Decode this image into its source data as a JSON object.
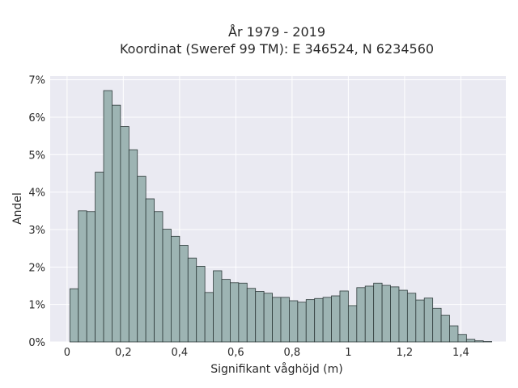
{
  "chart_data": {
    "type": "bar",
    "title": "År 1979 - 2019",
    "subtitle": "Koordinat (Sweref 99 TM): E 346524, N 6234560",
    "xlabel": "Signifikant våghöjd (m)",
    "ylabel": "Andel",
    "x_ticks": [
      0,
      0.2,
      0.4,
      0.6,
      0.8,
      1.0,
      1.2,
      1.4
    ],
    "x_tick_labels": [
      "0",
      "0,2",
      "0,4",
      "0,6",
      "0,8",
      "1",
      "1,2",
      "1,4"
    ],
    "y_ticks": [
      0,
      1,
      2,
      3,
      4,
      5,
      6,
      7
    ],
    "y_tick_labels": [
      "0%",
      "1%",
      "2%",
      "3%",
      "4%",
      "5%",
      "6%",
      "7%"
    ],
    "xlim": [
      -0.06,
      1.56
    ],
    "ylim": [
      0,
      7.1
    ],
    "grid": true,
    "bin_width": 0.03,
    "bin_start": 0.01,
    "values": [
      1.42,
      3.5,
      3.48,
      4.53,
      6.71,
      6.32,
      5.75,
      5.13,
      4.42,
      3.82,
      3.48,
      3.01,
      2.82,
      2.58,
      2.24,
      2.02,
      1.32,
      1.9,
      1.67,
      1.58,
      1.57,
      1.43,
      1.35,
      1.3,
      1.19,
      1.19,
      1.1,
      1.06,
      1.13,
      1.16,
      1.19,
      1.23,
      1.36,
      0.97,
      1.45,
      1.49,
      1.57,
      1.51,
      1.47,
      1.38,
      1.3,
      1.12,
      1.17,
      0.9,
      0.71,
      0.43,
      0.2,
      0.07,
      0.03,
      0.01
    ],
    "colors": {
      "bar_fill": "#9db4b3",
      "bar_stroke": "#2f3b3b",
      "plot_bg": "#eaeaf2",
      "grid": "#ffffff"
    }
  }
}
